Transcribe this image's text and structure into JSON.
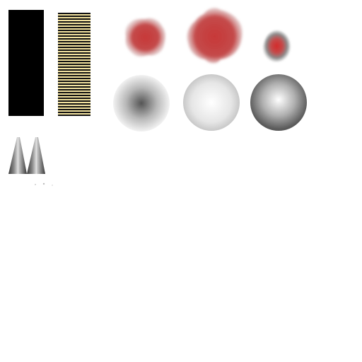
{
  "canvas": {
    "background": "#ffffff"
  },
  "colors": {
    "bar_black": "#000000",
    "stripe_dark": "#111111",
    "stripe_light": "#f3e3a0",
    "splat_outer": "#d9d9d9",
    "splat_mid": "#c44a4a",
    "splat_core": "#c73838",
    "sphere_dark": "#555555",
    "sphere_light": "#f2f2f2",
    "spike_dark": "#3a3a3a",
    "spike_light": "#e6e6e6"
  },
  "sprites": [
    {
      "id": "black-bar",
      "icon": "solid-black-bar"
    },
    {
      "id": "striped-bar",
      "icon": "horizontal-stripes-bar"
    },
    {
      "id": "splat-1",
      "icon": "red-splat"
    },
    {
      "id": "splat-2",
      "icon": "red-splat"
    },
    {
      "id": "splat-3",
      "icon": "small-red-splat"
    },
    {
      "id": "sphere-1",
      "icon": "dark-center-sphere"
    },
    {
      "id": "sphere-2",
      "icon": "light-sphere"
    },
    {
      "id": "sphere-3",
      "icon": "shaded-sphere"
    },
    {
      "id": "spikes",
      "icon": "twin-spikes"
    }
  ]
}
